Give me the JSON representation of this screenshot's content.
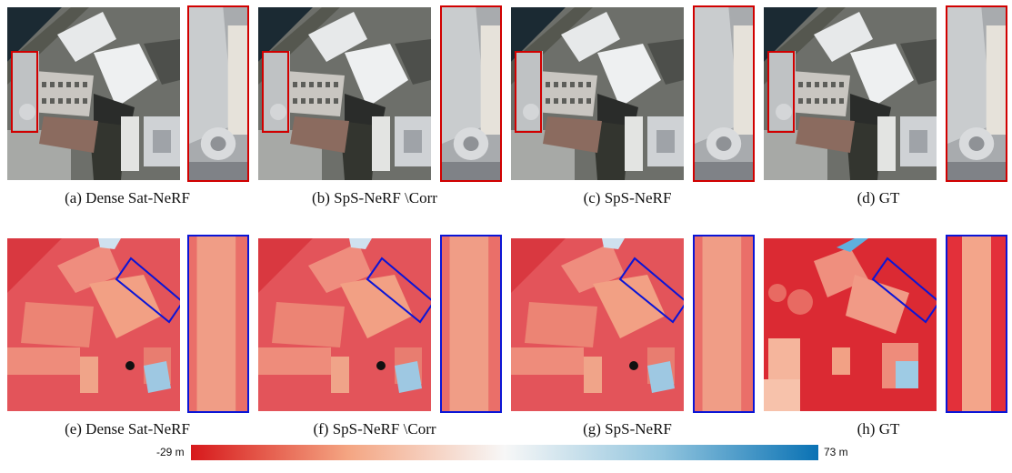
{
  "figure": {
    "row1_captions": [
      "(a)  Dense Sat-NeRF",
      "(b)  SpS-NeRF \\Corr",
      "(c)  SpS-NeRF",
      "(d)  GT"
    ],
    "row2_captions": [
      "(e)  Dense Sat-NeRF",
      "(f)  SpS-NeRF \\Corr",
      "(g)  SpS-NeRF",
      "(h)  GT"
    ],
    "colorbar": {
      "min_label": "-29 m",
      "max_label": "73 m",
      "colors": [
        "#d7191c",
        "#f7f7f7",
        "#0a72b4"
      ]
    },
    "highlight_colors": {
      "rgb_zoom": "#d10000",
      "dsm_zoom": "#0b15d6"
    }
  }
}
